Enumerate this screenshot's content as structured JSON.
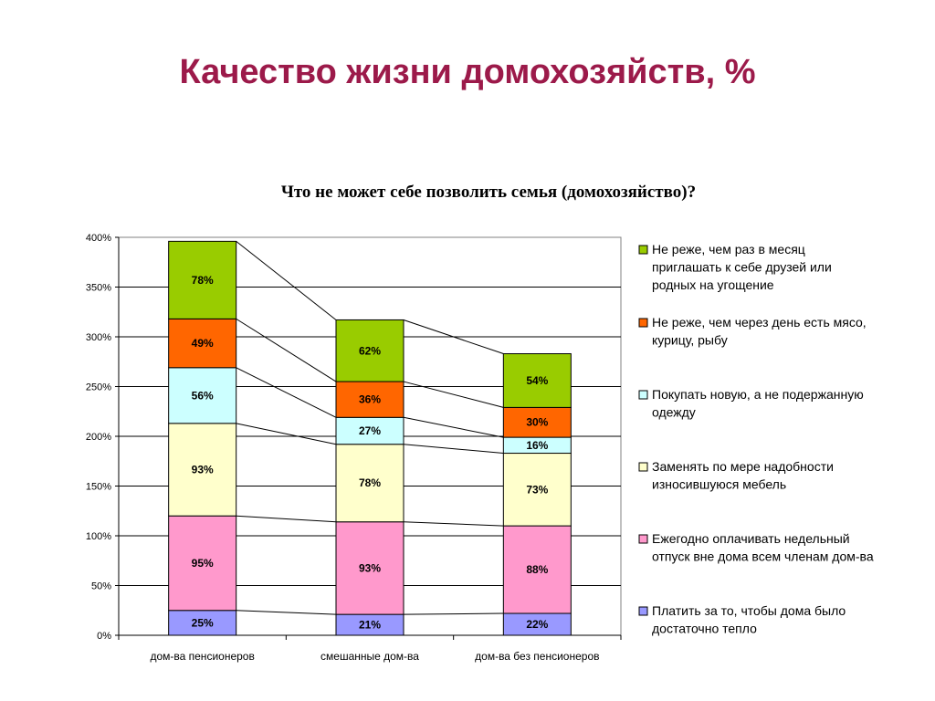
{
  "slide": {
    "title": "Качество жизни домохозяйств, %"
  },
  "chart_data": {
    "type": "bar",
    "stacked": true,
    "title": "Что не может себе позволить семья (домохозяйство)?",
    "xlabel": "",
    "ylabel": "",
    "ylim": [
      0,
      400
    ],
    "yticks": [
      "0%",
      "50%",
      "100%",
      "150%",
      "200%",
      "250%",
      "300%",
      "350%",
      "400%"
    ],
    "grid": true,
    "legend_position": "right",
    "series_lines": true,
    "categories": [
      "дом-ва пенсионеров",
      "смешанные дом-ва",
      "дом-ва без пенсионеров"
    ],
    "series": [
      {
        "name": "Платить за то, чтобы дома было достаточно тепло",
        "color": "#9999ff",
        "values": [
          25,
          21,
          22
        ],
        "labels": [
          "25%",
          "21%",
          "22%"
        ]
      },
      {
        "name": "Ежегодно оплачивать недельный отпуск вне дома всем членам дом-ва",
        "color": "#ff99cc",
        "values": [
          95,
          93,
          88
        ],
        "labels": [
          "95%",
          "93%",
          "88%"
        ]
      },
      {
        "name": "Заменять по мере надобности износившуюся мебель",
        "color": "#ffffcc",
        "values": [
          93,
          78,
          73
        ],
        "labels": [
          "93%",
          "78%",
          "73%"
        ]
      },
      {
        "name": "Покупать новую, а не подержанную одежду",
        "color": "#ccffff",
        "values": [
          56,
          27,
          16
        ],
        "labels": [
          "56%",
          "27%",
          "16%"
        ]
      },
      {
        "name": "Не реже, чем через день есть мясо, курицу, рыбу",
        "color": "#ff6600",
        "values": [
          49,
          36,
          30
        ],
        "labels": [
          "49%",
          "36%",
          "30%"
        ]
      },
      {
        "name": "Не реже, чем раз в месяц приглашать к себе друзей или родных на угощение",
        "color": "#99cc00",
        "values": [
          78,
          62,
          54
        ],
        "labels": [
          "78%",
          "62%",
          "54%"
        ]
      }
    ]
  }
}
